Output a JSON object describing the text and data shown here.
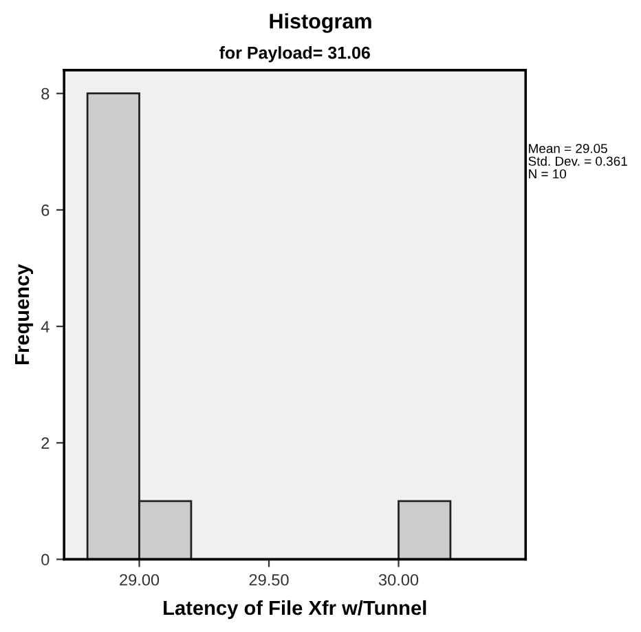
{
  "chart_data": {
    "type": "histogram",
    "title": "Histogram",
    "subtitle": "for Payload= 31.06",
    "xlabel": "Latency of File Xfr w/Tunnel",
    "ylabel": "Frequency",
    "bins": [
      28.8,
      29.0,
      29.2,
      29.4,
      29.6,
      29.8,
      30.0,
      30.2
    ],
    "values": [
      8,
      1,
      0,
      0,
      0,
      0,
      1
    ],
    "color": "#cccccc",
    "xlim": [
      28.71,
      30.49
    ],
    "xticks": [
      {
        "value": 29,
        "label": "29.00"
      },
      {
        "value": 29.5,
        "label": "29.50"
      },
      {
        "value": 30,
        "label": "30.00"
      }
    ],
    "ylim": [
      0,
      8.4
    ],
    "yticks": [
      0,
      2,
      4,
      6,
      8
    ],
    "annotations": [
      "Mean = 29.05",
      "Std. Dev. = 0.361",
      "N = 10"
    ],
    "grid": false,
    "legend": false
  }
}
